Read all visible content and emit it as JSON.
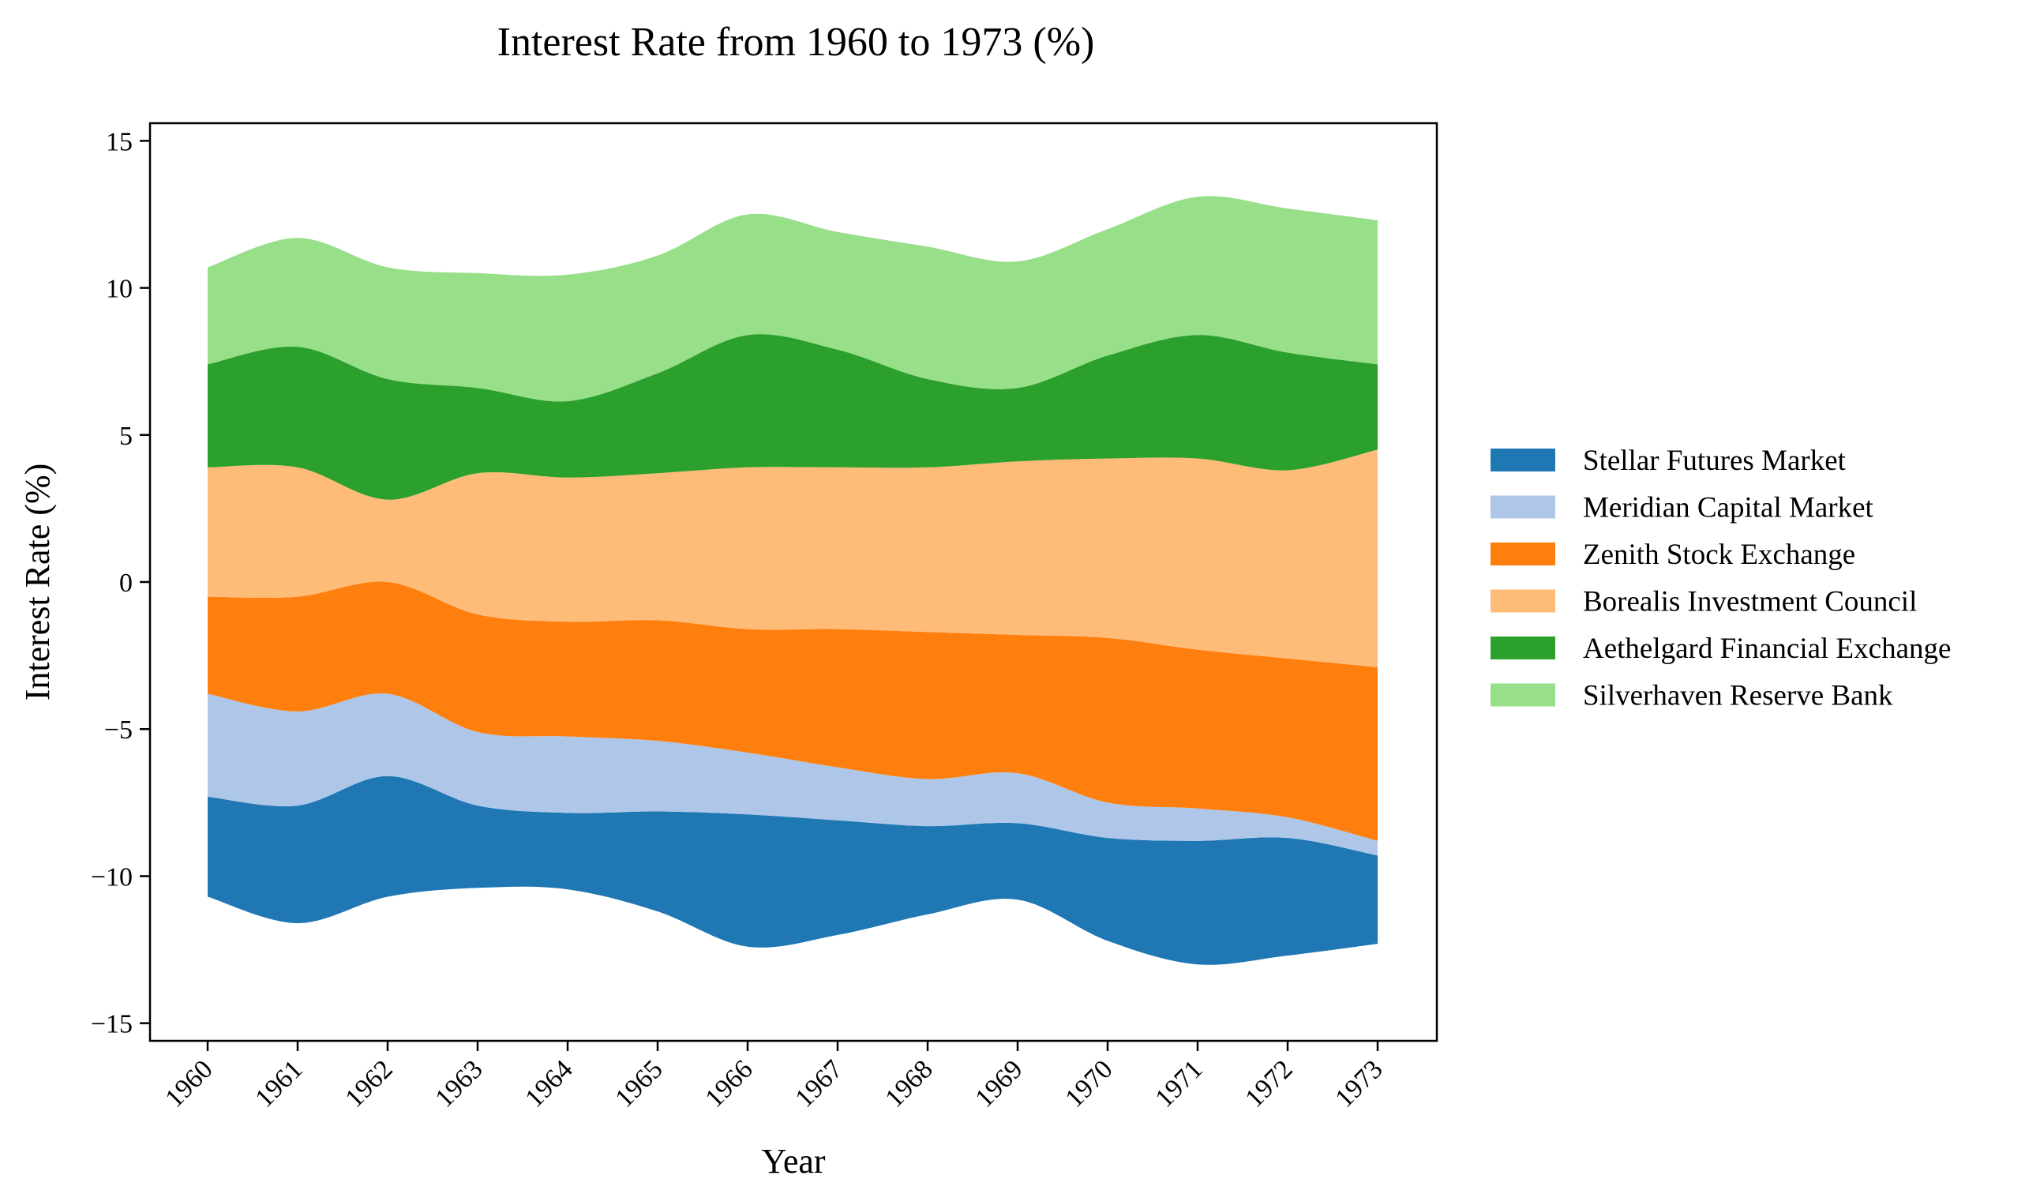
{
  "chart_data": {
    "type": "area",
    "subtype": "streamgraph",
    "title": "Interest Rate from 1960 to 1973 (%)",
    "xlabel": "Year",
    "ylabel": "Interest Rate (%)",
    "ylim": [
      -15.6,
      15.6
    ],
    "yticks": [
      {
        "value": -15,
        "label": "−15"
      },
      {
        "value": -10,
        "label": "−10"
      },
      {
        "value": -5,
        "label": "−5"
      },
      {
        "value": 0,
        "label": "0"
      },
      {
        "value": 5,
        "label": "5"
      },
      {
        "value": 10,
        "label": "10"
      },
      {
        "value": 15,
        "label": "15"
      }
    ],
    "categories": [
      "1960",
      "1961",
      "1962",
      "1963",
      "1964",
      "1965",
      "1966",
      "1967",
      "1968",
      "1969",
      "1970",
      "1971",
      "1972",
      "1973"
    ],
    "baseline": [
      -10.7,
      -11.6,
      -10.7,
      -10.4,
      -10.45,
      -11.2,
      -12.4,
      -12.0,
      -11.3,
      -10.8,
      -12.2,
      -13.0,
      -12.7,
      -12.3
    ],
    "legend_position": "center-right",
    "series": [
      {
        "name": "Stellar Futures Market",
        "color": "#1f77b4",
        "values": [
          3.4,
          4.0,
          4.1,
          2.8,
          2.6,
          3.4,
          4.5,
          3.9,
          3.0,
          2.6,
          3.5,
          4.2,
          4.0,
          3.0
        ]
      },
      {
        "name": "Meridian Capital Market",
        "color": "#aec7e8",
        "values": [
          3.5,
          3.2,
          2.8,
          2.5,
          2.6,
          2.4,
          2.1,
          1.8,
          1.6,
          1.7,
          1.2,
          1.1,
          0.7,
          0.5
        ]
      },
      {
        "name": "Zenith Stock Exchange",
        "color": "#ff7f0e",
        "values": [
          3.3,
          3.9,
          3.8,
          4.0,
          3.9,
          4.1,
          4.2,
          4.7,
          5.0,
          4.7,
          5.6,
          5.4,
          5.4,
          5.9
        ]
      },
      {
        "name": "Borealis Investment Council",
        "color": "#ffbb78",
        "values": [
          4.4,
          4.4,
          2.8,
          4.8,
          4.9,
          5.0,
          5.5,
          5.5,
          5.6,
          5.9,
          6.1,
          6.5,
          6.4,
          7.4
        ]
      },
      {
        "name": "Aethelgard Financial Exchange",
        "color": "#2ca02c",
        "values": [
          3.5,
          4.1,
          4.1,
          2.9,
          2.6,
          3.4,
          4.5,
          4.0,
          3.0,
          2.5,
          3.5,
          4.2,
          4.0,
          2.9
        ]
      },
      {
        "name": "Silverhaven Reserve Bank",
        "color": "#98df8a",
        "values": [
          3.3,
          3.7,
          3.8,
          3.9,
          4.3,
          4.0,
          4.1,
          4.0,
          4.5,
          4.3,
          4.3,
          4.7,
          4.9,
          4.9
        ]
      }
    ]
  }
}
